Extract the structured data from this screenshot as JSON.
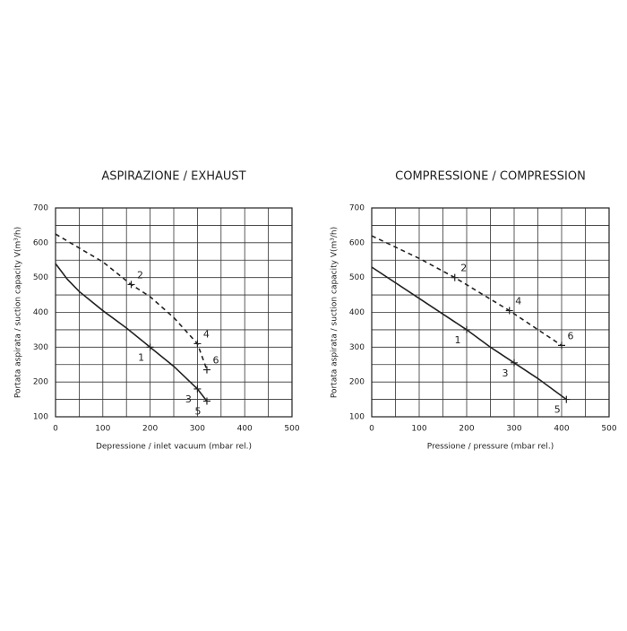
{
  "chart_data": [
    {
      "type": "line",
      "title": "ASPIRAZIONE /  EXHAUST",
      "xlabel": "Depressione / inlet vacuum (mbar rel.)",
      "ylabel": "Portata aspirata / suction capacity V(m³/h)",
      "xlim": [
        0,
        500
      ],
      "ylim": [
        100,
        700
      ],
      "xticks": [
        0,
        100,
        200,
        300,
        400,
        500
      ],
      "yticks": [
        100,
        200,
        300,
        400,
        500,
        600,
        700
      ],
      "grid": true,
      "series": [
        {
          "style": "solid",
          "color": "#222222",
          "x": [
            0,
            25,
            50,
            100,
            150,
            200,
            250,
            300,
            320
          ],
          "values": [
            540,
            495,
            460,
            405,
            355,
            300,
            245,
            180,
            145
          ],
          "points": [
            {
              "label": "1",
              "x": 200,
              "y": 300
            },
            {
              "label": "3",
              "x": 300,
              "y": 180
            },
            {
              "label": "5",
              "x": 320,
              "y": 145
            }
          ]
        },
        {
          "style": "dashed",
          "color": "#222222",
          "x": [
            0,
            50,
            100,
            160,
            200,
            250,
            300,
            320
          ],
          "values": [
            625,
            585,
            545,
            480,
            445,
            385,
            310,
            235
          ],
          "points": [
            {
              "label": "2",
              "x": 160,
              "y": 480
            },
            {
              "label": "4",
              "x": 300,
              "y": 310
            },
            {
              "label": "6",
              "x": 320,
              "y": 235
            }
          ]
        }
      ]
    },
    {
      "type": "line",
      "title": "COMPRESSIONE /  COMPRESSION",
      "xlabel": "Pressione / pressure (mbar rel.)",
      "ylabel": "Portata aspirata / suction capacity V(m³/h)",
      "xlim": [
        0,
        500
      ],
      "ylim": [
        100,
        700
      ],
      "xticks": [
        0,
        100,
        200,
        300,
        400,
        500
      ],
      "yticks": [
        100,
        200,
        300,
        400,
        500,
        600,
        700
      ],
      "grid": true,
      "series": [
        {
          "style": "solid",
          "color": "#222222",
          "x": [
            0,
            100,
            200,
            250,
            300,
            350,
            410
          ],
          "values": [
            530,
            440,
            350,
            300,
            255,
            210,
            150
          ],
          "points": [
            {
              "label": "1",
              "x": 200,
              "y": 350
            },
            {
              "label": "3",
              "x": 300,
              "y": 255
            },
            {
              "label": "5",
              "x": 410,
              "y": 150
            }
          ]
        },
        {
          "style": "dashed",
          "color": "#222222",
          "x": [
            0,
            100,
            175,
            290,
            400
          ],
          "values": [
            620,
            555,
            500,
            405,
            305
          ],
          "points": [
            {
              "label": "2",
              "x": 175,
              "y": 500
            },
            {
              "label": "4",
              "x": 290,
              "y": 405
            },
            {
              "label": "6",
              "x": 400,
              "y": 305
            }
          ]
        }
      ]
    }
  ]
}
